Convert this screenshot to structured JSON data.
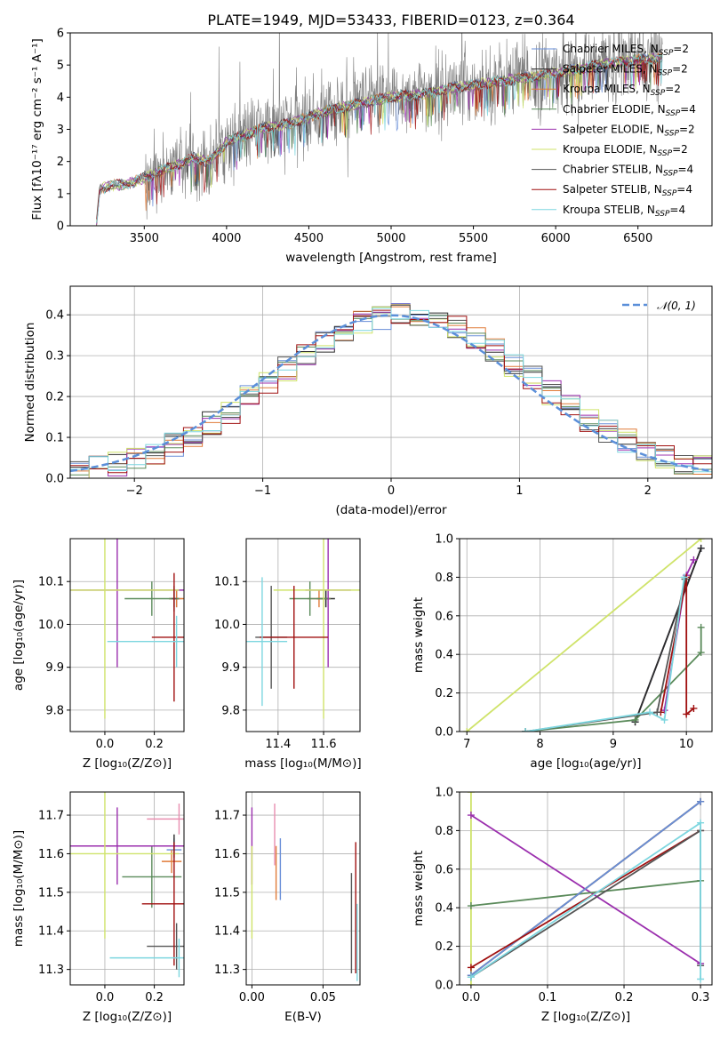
{
  "colors": {
    "Chabrier MILES": "#6a8fd8",
    "Salpeter MILES": "#2b2b2b",
    "Kroupa MILES": "#e07b39",
    "Chabrier ELODIE": "#5a8a5a",
    "Salpeter ELODIE": "#9b2fae",
    "Kroupa ELODIE": "#cfe36a",
    "Chabrier STELIB": "#555555",
    "Salpeter STELIB": "#a01010",
    "Kroupa STELIB": "#7dd6df",
    "gauss": "#5b8fd9",
    "spec": "#808080"
  },
  "chart_data": [
    {
      "id": "spectrum",
      "type": "line",
      "title": "PLATE=1949, MJD=53433, FIBERID=0123, z=0.364",
      "xlabel": "wavelength [Angstrom, rest frame]",
      "ylabel": "Flux [fλ10⁻¹⁷ erg cm⁻² s⁻¹ A⁻¹]",
      "xlim": [
        3050,
        6950
      ],
      "ylim": [
        0,
        6
      ],
      "xticks": [
        "3500",
        "4000",
        "4500",
        "5000",
        "5500",
        "6000",
        "6500"
      ],
      "yticks": [
        "0",
        "1",
        "2",
        "3",
        "4",
        "5",
        "6"
      ],
      "legend": [
        "Chabrier MILES, N_SSP=2",
        "Salpeter MILES, N_SSP=2",
        "Kroupa MILES, N_SSP=2",
        "Chabrier ELODIE, N_SSP=4",
        "Salpeter ELODIE, N_SSP=2",
        "Kroupa ELODIE, N_SSP=2",
        "Chabrier STELIB, N_SSP=4",
        "Salpeter STELIB, N_SSP=4",
        "Kroupa STELIB, N_SSP=4"
      ],
      "model_continuum": {
        "x": [
          3210,
          3230,
          3300,
          3400,
          3500,
          3600,
          3700,
          3800,
          3900,
          4000,
          4200,
          4400,
          4600,
          4800,
          5000,
          5200,
          5400,
          5600,
          5800,
          6000,
          6200,
          6400,
          6600
        ],
        "y": [
          0.05,
          1.15,
          1.25,
          1.3,
          1.5,
          1.7,
          1.9,
          2.1,
          2.0,
          2.6,
          3.0,
          3.2,
          3.55,
          3.8,
          4.0,
          4.1,
          4.3,
          4.45,
          4.6,
          4.75,
          4.95,
          5.1,
          5.2
        ]
      }
    },
    {
      "id": "residuals",
      "type": "line",
      "xlabel": "(data-model)/error",
      "ylabel": "Normed distribution",
      "xlim": [
        -2.5,
        2.5
      ],
      "ylim": [
        0,
        0.47
      ],
      "xticks": [
        "−2",
        "−1",
        "0",
        "1",
        "2"
      ],
      "yticks": [
        "0.0",
        "0.1",
        "0.2",
        "0.3",
        "0.4"
      ],
      "legend": "𝒩(0, 1)"
    },
    {
      "id": "age_vs_Z",
      "type": "scatter",
      "xlabel": "Z [log₁₀(Z/Z⊙)]",
      "ylabel": "age  [log₁₀(age/yr)]",
      "xlim": [
        -0.14,
        0.32
      ],
      "ylim": [
        9.75,
        10.2
      ],
      "xticks": [
        "0.0",
        "0.2"
      ],
      "yticks": [
        "9.8",
        "9.9",
        "10.0",
        "10.1"
      ],
      "points": [
        {
          "model": "Chabrier MILES",
          "x": 0.29,
          "y": 10.06,
          "xe": 0.02,
          "ye": 0.02
        },
        {
          "model": "Salpeter MILES",
          "x": 0.28,
          "y": 10.06,
          "xe": 0.02,
          "ye": 0.02
        },
        {
          "model": "Kroupa MILES",
          "x": 0.29,
          "y": 10.06,
          "xe": 0.03,
          "ye": 0.02
        },
        {
          "model": "Chabrier ELODIE",
          "x": 0.19,
          "y": 10.06,
          "xe": 0.11,
          "ye": 0.04
        },
        {
          "model": "Salpeter ELODIE",
          "x": 0.05,
          "y": 10.08,
          "xe": 0.3,
          "ye": 0.18
        },
        {
          "model": "Kroupa ELODIE",
          "x": 0.0,
          "y": 10.08,
          "xe": 0.3,
          "ye": 0.3
        },
        {
          "model": "Chabrier STELIB",
          "x": 0.28,
          "y": 10.06,
          "xe": 0.01,
          "ye": 0.03
        },
        {
          "model": "Salpeter STELIB",
          "x": 0.28,
          "y": 9.97,
          "xe": 0.09,
          "ye": 0.15
        },
        {
          "model": "Kroupa STELIB",
          "x": 0.29,
          "y": 9.96,
          "xe": 0.28,
          "ye": 0.06
        }
      ]
    },
    {
      "id": "age_vs_mass",
      "type": "scatter",
      "xlabel": "mass [log₁₀(M/M⊙)]",
      "xlim": [
        11.26,
        11.76
      ],
      "ylim": [
        9.75,
        10.2
      ],
      "xticks": [
        "11.4",
        "11.6"
      ],
      "yticks": [
        "9.8",
        "9.9",
        "10.0",
        "10.1"
      ],
      "points": [
        {
          "model": "Chabrier MILES",
          "x": 11.61,
          "y": 10.06,
          "xe": 0.02,
          "ye": 0.02
        },
        {
          "model": "Salpeter MILES",
          "x": 11.61,
          "y": 10.06,
          "xe": 0.04,
          "ye": 0.02
        },
        {
          "model": "Kroupa MILES",
          "x": 11.58,
          "y": 10.06,
          "xe": 0.05,
          "ye": 0.02
        },
        {
          "model": "Chabrier ELODIE",
          "x": 11.54,
          "y": 10.06,
          "xe": 0.09,
          "ye": 0.04
        },
        {
          "model": "Salpeter ELODIE",
          "x": 11.62,
          "y": 10.08,
          "xe": 0.1,
          "ye": 0.18
        },
        {
          "model": "Kroupa ELODIE",
          "x": 11.6,
          "y": 10.08,
          "xe": 0.22,
          "ye": 0.3
        },
        {
          "model": "Chabrier STELIB",
          "x": 11.37,
          "y": 9.97,
          "xe": 0.07,
          "ye": 0.12
        },
        {
          "model": "Salpeter STELIB",
          "x": 11.47,
          "y": 9.97,
          "xe": 0.15,
          "ye": 0.12
        },
        {
          "model": "Kroupa STELIB",
          "x": 11.33,
          "y": 9.96,
          "xe": 0.11,
          "ye": 0.15
        }
      ]
    },
    {
      "id": "mass_weight_vs_age",
      "type": "line",
      "xlabel": "age  [log₁₀(age/yr)]",
      "ylabel": "mass weight",
      "xlim": [
        6.9,
        10.35
      ],
      "ylim": [
        0,
        1.0
      ],
      "xticks": [
        "7",
        "8",
        "9",
        "10"
      ],
      "yticks": [
        "0.0",
        "0.2",
        "0.4",
        "0.6",
        "0.8",
        "1.0"
      ],
      "series": [
        {
          "model": "Kroupa ELODIE",
          "x": [
            7.0,
            10.2
          ],
          "y": [
            0.0,
            1.0
          ]
        },
        {
          "model": "Kroupa MILES",
          "x": [
            9.3,
            10.2
          ],
          "y": [
            0.05,
            0.95
          ]
        },
        {
          "model": "Chabrier MILES",
          "x": [
            9.3,
            10.2
          ],
          "y": [
            0.05,
            0.95
          ]
        },
        {
          "model": "Salpeter MILES",
          "x": [
            9.3,
            10.2
          ],
          "y": [
            0.05,
            0.95
          ]
        },
        {
          "model": "Chabrier ELODIE",
          "x": [
            7.8,
            9.3,
            10.2,
            10.2
          ],
          "y": [
            0.0,
            0.06,
            0.41,
            0.54
          ]
        },
        {
          "model": "Salpeter ELODIE",
          "x": [
            9.7,
            10.0,
            10.1
          ],
          "y": [
            0.11,
            0.81,
            0.89
          ]
        },
        {
          "model": "Salpeter STELIB",
          "x": [
            9.65,
            10.0,
            10.0,
            10.1
          ],
          "y": [
            0.1,
            0.8,
            0.09,
            0.12
          ]
        },
        {
          "model": "Chabrier STELIB",
          "x": [
            7.8,
            9.6,
            9.98
          ],
          "y": [
            0.0,
            0.1,
            0.79
          ]
        },
        {
          "model": "Kroupa STELIB",
          "x": [
            7.8,
            9.5,
            9.7,
            9.97
          ],
          "y": [
            0.0,
            0.1,
            0.06,
            0.8
          ]
        }
      ]
    },
    {
      "id": "mass_vs_Z",
      "type": "scatter",
      "xlabel": "Z [log₁₀(Z/Z⊙)]",
      "ylabel": "mass [log₁₀(M/M⊙)]",
      "xlim": [
        -0.14,
        0.32
      ],
      "ylim": [
        11.26,
        11.76
      ],
      "xticks": [
        "0.0",
        "0.2"
      ],
      "yticks": [
        "11.3",
        "11.4",
        "11.5",
        "11.6",
        "11.7"
      ],
      "points": [
        {
          "model": "Chabrier MILES",
          "x": 0.28,
          "y": 11.61,
          "xe": 0.03,
          "ye": 0.03
        },
        {
          "model": "Salpeter MILES",
          "x": 0.28,
          "y": 11.62,
          "xe": 0.02,
          "ye": 0.03
        },
        {
          "model": "Kroupa MILES",
          "x": 0.27,
          "y": 11.58,
          "xe": 0.04,
          "ye": 0.03
        },
        {
          "model": "Chabrier ELODIE",
          "x": 0.19,
          "y": 11.54,
          "xe": 0.12,
          "ye": 0.08
        },
        {
          "model": "Salpeter ELODIE",
          "x": 0.05,
          "y": 11.62,
          "xe": 0.3,
          "ye": 0.1
        },
        {
          "model": "Kroupa ELODIE",
          "x": 0.0,
          "y": 11.6,
          "xe": 0.3,
          "ye": 0.22
        },
        {
          "model": "Chabrier STELIB",
          "x": 0.29,
          "y": 11.36,
          "xe": 0.12,
          "ye": 0.06
        },
        {
          "model": "Salpeter STELIB",
          "x": 0.28,
          "y": 11.47,
          "xe": 0.13,
          "ye": 0.16
        },
        {
          "model": "Kroupa STELIB",
          "x": 0.3,
          "y": 11.33,
          "xe": 0.28,
          "ye": 0.05
        },
        {
          "model": "pink",
          "x": 0.3,
          "y": 11.69,
          "xe": 0.13,
          "ye": 0.04
        }
      ]
    },
    {
      "id": "mass_vs_EBV",
      "type": "scatter",
      "xlabel": "E(B-V)",
      "xlim": [
        -0.004,
        0.076
      ],
      "ylim": [
        11.26,
        11.76
      ],
      "xticks": [
        "0.00",
        "0.05"
      ],
      "yticks": [
        "11.3",
        "11.4",
        "11.5",
        "11.6",
        "11.7"
      ],
      "points": [
        {
          "model": "Salpeter ELODIE",
          "x": 0.0,
          "y": 11.62,
          "ye": 0.1
        },
        {
          "model": "Kroupa ELODIE",
          "x": 0.0,
          "y": 11.5,
          "ye": 0.12
        },
        {
          "model": "Kroupa MILES",
          "x": 0.017,
          "y": 11.55,
          "ye": 0.07
        },
        {
          "model": "pink",
          "x": 0.016,
          "y": 11.65,
          "ye": 0.08
        },
        {
          "model": "Chabrier MILES",
          "x": 0.02,
          "y": 11.56,
          "ye": 0.08
        },
        {
          "model": "Chabrier STELIB",
          "x": 0.07,
          "y": 11.42,
          "ye": 0.13
        },
        {
          "model": "Salpeter STELIB",
          "x": 0.073,
          "y": 11.46,
          "ye": 0.17
        },
        {
          "model": "Kroupa STELIB",
          "x": 0.074,
          "y": 11.37,
          "ye": 0.1
        }
      ]
    },
    {
      "id": "mass_weight_vs_Z",
      "type": "line",
      "xlabel": "Z [log₁₀(Z/Z⊙)]",
      "ylabel": "mass weight",
      "xlim": [
        -0.015,
        0.315
      ],
      "ylim": [
        0,
        1.0
      ],
      "xticks": [
        "0.0",
        "0.1",
        "0.2",
        "0.3"
      ],
      "yticks": [
        "0.0",
        "0.2",
        "0.4",
        "0.6",
        "0.8",
        "1.0"
      ],
      "series": [
        {
          "model": "Kroupa ELODIE",
          "x": [
            0.0,
            0.0
          ],
          "y": [
            0.0,
            1.0
          ]
        },
        {
          "model": "Salpeter ELODIE",
          "x": [
            0.0,
            0.3
          ],
          "y": [
            0.88,
            0.11
          ]
        },
        {
          "model": "Chabrier ELODIE",
          "x": [
            0.0,
            0.3
          ],
          "y": [
            0.41,
            0.54
          ]
        },
        {
          "model": "Kroupa MILES",
          "x": [
            0.0,
            0.3
          ],
          "y": [
            0.05,
            0.95
          ]
        },
        {
          "model": "Salpeter MILES",
          "x": [
            0.0,
            0.3
          ],
          "y": [
            0.05,
            0.95
          ]
        },
        {
          "model": "Chabrier MILES",
          "x": [
            0.0,
            0.3
          ],
          "y": [
            0.05,
            0.95
          ]
        },
        {
          "model": "Salpeter STELIB",
          "x": [
            0.0,
            0.3
          ],
          "y": [
            0.09,
            0.8
          ]
        },
        {
          "model": "Chabrier STELIB",
          "x": [
            0.0,
            0.3,
            0.3
          ],
          "y": [
            0.04,
            0.8,
            0.1
          ]
        },
        {
          "model": "Kroupa STELIB",
          "x": [
            0.0,
            0.3,
            0.3
          ],
          "y": [
            0.04,
            0.84,
            0.03
          ]
        }
      ]
    }
  ]
}
